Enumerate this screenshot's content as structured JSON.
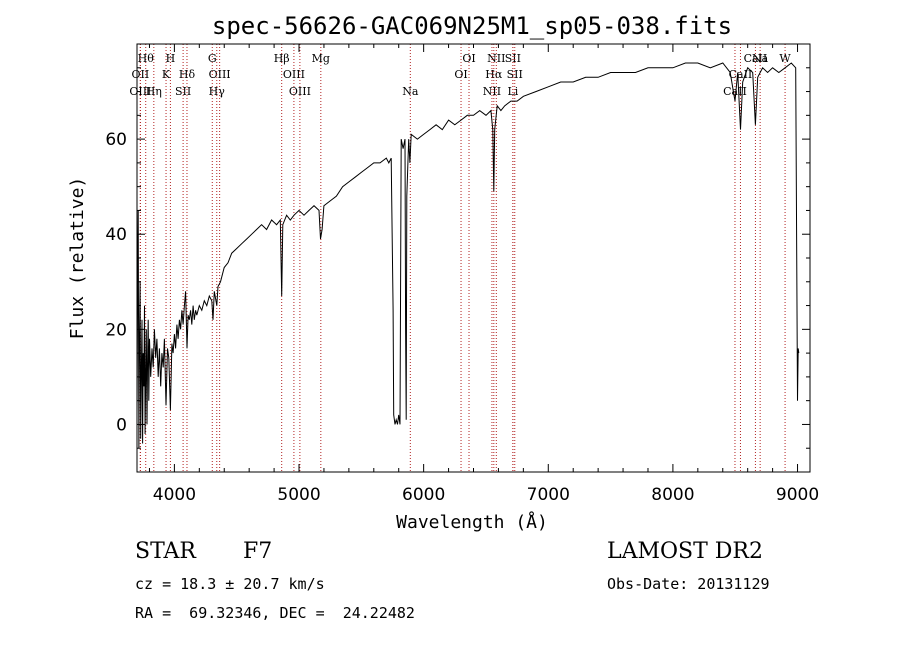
{
  "chart_data": {
    "type": "line",
    "title": "spec-56626-GAC069N25M1_sp05-038.fits",
    "xlabel": "Wavelength (Å)",
    "ylabel": "Flux (relative)",
    "xlim": [
      3700,
      9100
    ],
    "ylim": [
      -10,
      80
    ],
    "xticks": [
      4000,
      5000,
      6000,
      7000,
      8000,
      9000
    ],
    "yticks": [
      0,
      20,
      40,
      60
    ],
    "grid": false,
    "line_color": "#000000",
    "marker_color": "#b22222",
    "series": [
      {
        "values": [
          [
            3700,
            2
          ],
          [
            3705,
            28
          ],
          [
            3710,
            45
          ],
          [
            3715,
            -5
          ],
          [
            3720,
            18
          ],
          [
            3725,
            30
          ],
          [
            3730,
            -3
          ],
          [
            3735,
            12
          ],
          [
            3740,
            22
          ],
          [
            3745,
            -4
          ],
          [
            3750,
            15
          ],
          [
            3755,
            8
          ],
          [
            3760,
            25
          ],
          [
            3765,
            -2
          ],
          [
            3770,
            10
          ],
          [
            3775,
            20
          ],
          [
            3780,
            0
          ],
          [
            3785,
            14
          ],
          [
            3790,
            22
          ],
          [
            3795,
            5
          ],
          [
            3800,
            18
          ],
          [
            3810,
            10
          ],
          [
            3820,
            16
          ],
          [
            3830,
            12
          ],
          [
            3840,
            20
          ],
          [
            3850,
            14
          ],
          [
            3860,
            18
          ],
          [
            3870,
            10
          ],
          [
            3880,
            16
          ],
          [
            3890,
            8
          ],
          [
            3900,
            15
          ],
          [
            3910,
            12
          ],
          [
            3920,
            18
          ],
          [
            3933,
            4
          ],
          [
            3945,
            16
          ],
          [
            3955,
            14
          ],
          [
            3968,
            3
          ],
          [
            3980,
            17
          ],
          [
            3990,
            15
          ],
          [
            4000,
            19
          ],
          [
            4010,
            16
          ],
          [
            4020,
            21
          ],
          [
            4030,
            18
          ],
          [
            4040,
            22
          ],
          [
            4050,
            20
          ],
          [
            4060,
            24
          ],
          [
            4070,
            21
          ],
          [
            4080,
            25
          ],
          [
            4090,
            28
          ],
          [
            4101,
            16
          ],
          [
            4110,
            23
          ],
          [
            4120,
            22
          ],
          [
            4130,
            24
          ],
          [
            4140,
            21
          ],
          [
            4150,
            25
          ],
          [
            4160,
            22
          ],
          [
            4170,
            24
          ],
          [
            4180,
            23
          ],
          [
            4200,
            25
          ],
          [
            4220,
            24
          ],
          [
            4240,
            26
          ],
          [
            4260,
            25
          ],
          [
            4280,
            27
          ],
          [
            4300,
            26
          ],
          [
            4310,
            22
          ],
          [
            4320,
            28
          ],
          [
            4340,
            25
          ],
          [
            4350,
            29
          ],
          [
            4370,
            30
          ],
          [
            4400,
            33
          ],
          [
            4430,
            34
          ],
          [
            4460,
            36
          ],
          [
            4500,
            37
          ],
          [
            4540,
            38
          ],
          [
            4580,
            39
          ],
          [
            4620,
            40
          ],
          [
            4660,
            41
          ],
          [
            4700,
            42
          ],
          [
            4740,
            41
          ],
          [
            4780,
            43
          ],
          [
            4820,
            42
          ],
          [
            4850,
            43
          ],
          [
            4861,
            27
          ],
          [
            4870,
            42
          ],
          [
            4900,
            44
          ],
          [
            4930,
            43
          ],
          [
            4960,
            44
          ],
          [
            5000,
            45
          ],
          [
            5040,
            44
          ],
          [
            5080,
            45
          ],
          [
            5120,
            46
          ],
          [
            5160,
            45
          ],
          [
            5172,
            39
          ],
          [
            5185,
            41
          ],
          [
            5200,
            46
          ],
          [
            5250,
            47
          ],
          [
            5300,
            48
          ],
          [
            5350,
            50
          ],
          [
            5400,
            51
          ],
          [
            5450,
            52
          ],
          [
            5500,
            53
          ],
          [
            5550,
            54
          ],
          [
            5600,
            55
          ],
          [
            5650,
            55
          ],
          [
            5700,
            56
          ],
          [
            5720,
            55
          ],
          [
            5740,
            56
          ],
          [
            5755,
            24
          ],
          [
            5760,
            2
          ],
          [
            5770,
            0
          ],
          [
            5780,
            1
          ],
          [
            5790,
            0
          ],
          [
            5800,
            2
          ],
          [
            5810,
            0
          ],
          [
            5820,
            60
          ],
          [
            5835,
            58
          ],
          [
            5850,
            60
          ],
          [
            5855,
            20
          ],
          [
            5860,
            1
          ],
          [
            5865,
            48
          ],
          [
            5880,
            60
          ],
          [
            5890,
            55
          ],
          [
            5900,
            61
          ],
          [
            5950,
            60
          ],
          [
            6000,
            61
          ],
          [
            6050,
            62
          ],
          [
            6100,
            63
          ],
          [
            6150,
            62
          ],
          [
            6200,
            64
          ],
          [
            6250,
            63
          ],
          [
            6300,
            64
          ],
          [
            6350,
            65
          ],
          [
            6400,
            65
          ],
          [
            6450,
            66
          ],
          [
            6500,
            65
          ],
          [
            6540,
            66
          ],
          [
            6555,
            62
          ],
          [
            6563,
            49
          ],
          [
            6570,
            62
          ],
          [
            6590,
            67
          ],
          [
            6620,
            66
          ],
          [
            6650,
            67
          ],
          [
            6700,
            68
          ],
          [
            6750,
            68
          ],
          [
            6800,
            69
          ],
          [
            6900,
            70
          ],
          [
            7000,
            71
          ],
          [
            7100,
            72
          ],
          [
            7200,
            72
          ],
          [
            7300,
            73
          ],
          [
            7400,
            73
          ],
          [
            7500,
            74
          ],
          [
            7600,
            74
          ],
          [
            7700,
            74
          ],
          [
            7800,
            75
          ],
          [
            7900,
            75
          ],
          [
            8000,
            75
          ],
          [
            8100,
            76
          ],
          [
            8200,
            76
          ],
          [
            8300,
            75
          ],
          [
            8400,
            76
          ],
          [
            8460,
            74
          ],
          [
            8498,
            68
          ],
          [
            8520,
            74
          ],
          [
            8542,
            62
          ],
          [
            8560,
            72
          ],
          [
            8600,
            75
          ],
          [
            8640,
            74
          ],
          [
            8662,
            63
          ],
          [
            8680,
            73
          ],
          [
            8720,
            75
          ],
          [
            8760,
            74
          ],
          [
            8800,
            75
          ],
          [
            8850,
            74
          ],
          [
            8900,
            75
          ],
          [
            8950,
            76
          ],
          [
            8985,
            75
          ],
          [
            9000,
            5
          ],
          [
            9005,
            16
          ],
          [
            9010,
            15
          ]
        ]
      }
    ],
    "line_markers": [
      {
        "x": 3770,
        "label": "Hθ",
        "row": 0
      },
      {
        "x": 3727,
        "label": "OII",
        "row": 1
      },
      {
        "x": 3727,
        "label": "OIII",
        "row": 2
      },
      {
        "x": 3835,
        "label": "Hη",
        "row": 2
      },
      {
        "x": 3968,
        "label": "H",
        "row": 0
      },
      {
        "x": 3933,
        "label": "K",
        "row": 1
      },
      {
        "x": 4101,
        "label": "Hδ",
        "row": 1
      },
      {
        "x": 4070,
        "label": "SII",
        "row": 2
      },
      {
        "x": 4304,
        "label": "G",
        "row": 0
      },
      {
        "x": 4363,
        "label": "OIII",
        "row": 1
      },
      {
        "x": 4340,
        "label": "Hγ",
        "row": 2
      },
      {
        "x": 4861,
        "label": "Hβ",
        "row": 0
      },
      {
        "x": 4959,
        "label": "OIII",
        "row": 1
      },
      {
        "x": 5007,
        "label": "OIII",
        "row": 2
      },
      {
        "x": 5175,
        "label": "Mg",
        "row": 0
      },
      {
        "x": 5893,
        "label": "Na",
        "row": 2
      },
      {
        "x": 6364,
        "label": "OI",
        "row": 0
      },
      {
        "x": 6300,
        "label": "OI",
        "row": 1
      },
      {
        "x": 6583,
        "label": "NII",
        "row": 0
      },
      {
        "x": 6563,
        "label": "Hα",
        "row": 1
      },
      {
        "x": 6548,
        "label": "NII",
        "row": 2
      },
      {
        "x": 6716,
        "label": "SII",
        "row": 0
      },
      {
        "x": 6731,
        "label": "SII",
        "row": 1
      },
      {
        "x": 6716,
        "label": "Li",
        "row": 2
      },
      {
        "x": 8662,
        "label": "CaII",
        "row": 0
      },
      {
        "x": 8542,
        "label": "CaII",
        "row": 1
      },
      {
        "x": 8498,
        "label": "CaII",
        "row": 2
      },
      {
        "x": 8700,
        "label": "Na",
        "row": 0
      },
      {
        "x": 8900,
        "label": "W",
        "row": 0
      }
    ]
  },
  "info": {
    "object_type": "STAR",
    "subclass": "F7",
    "cz": "cz = 18.3 ± 20.7 km/s",
    "coords": "RA =  69.32346, DEC =  24.22482",
    "survey": "LAMOST DR2",
    "obs_date": "Obs-Date: 20131129"
  }
}
